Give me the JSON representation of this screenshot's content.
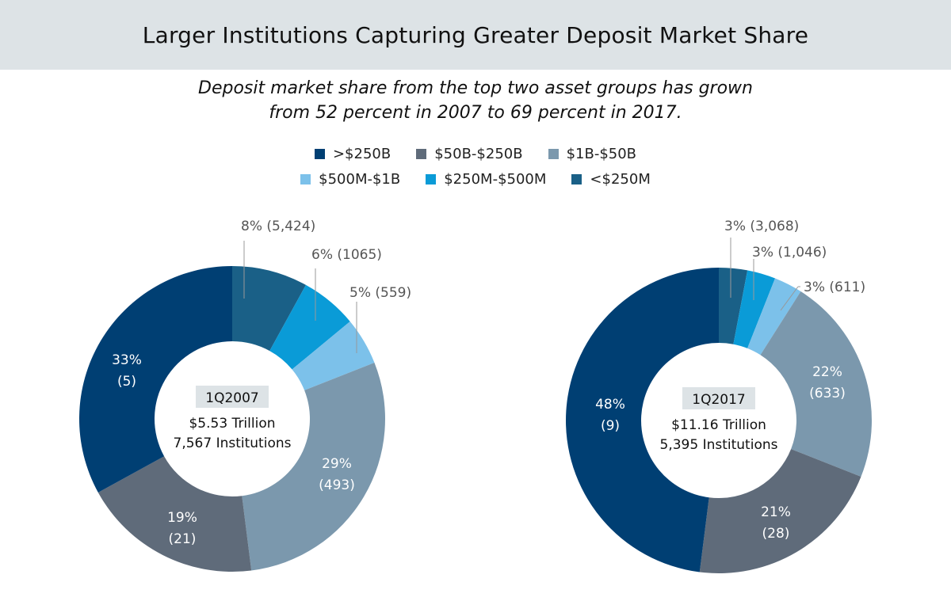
{
  "header": {
    "title": "Larger Institutions Capturing Greater Deposit Market Share",
    "subtitle_line1": "Deposit market share from the top two asset groups has grown",
    "subtitle_line2": "from 52 percent in 2007 to 69 percent in 2017."
  },
  "legend": {
    "row1": [
      {
        "label": ">$250B",
        "color": "#003f73"
      },
      {
        "label": "$50B-$250B",
        "color": "#5f6b7a"
      },
      {
        "label": "$1B-$50B",
        "color": "#7b98ad"
      }
    ],
    "row2": [
      {
        "label": "$500M-$1B",
        "color": "#7cc1ea"
      },
      {
        "label": "$250M-$500M",
        "color": "#0a9bd7"
      },
      {
        "label": "<$250M",
        "color": "#1a6087"
      }
    ]
  },
  "chart_data": [
    {
      "type": "pie",
      "center_label": "1Q2007",
      "center_line1": "$5.53 Trillion",
      "center_line2": "7,567 Institutions",
      "slices": [
        {
          "group": "<$250M",
          "percent": 8,
          "count": "5,424",
          "label": "8% (5,424)",
          "color": "#1a6087"
        },
        {
          "group": "$250M-$500M",
          "percent": 6,
          "count": "1065",
          "label": "6% (1065)",
          "color": "#0a9bd7"
        },
        {
          "group": "$500M-$1B",
          "percent": 5,
          "count": "559",
          "label": "5% (559)",
          "color": "#7cc1ea"
        },
        {
          "group": "$1B-$50B",
          "percent": 29,
          "count": "493",
          "label_pct": "29%",
          "label_cnt": "(493)",
          "color": "#7b98ad"
        },
        {
          "group": "$50B-$250B",
          "percent": 19,
          "count": "21",
          "label_pct": "19%",
          "label_cnt": "(21)",
          "color": "#5f6b7a"
        },
        {
          "group": ">$250B",
          "percent": 33,
          "count": "5",
          "label_pct": "33%",
          "label_cnt": "(5)",
          "color": "#003f73"
        }
      ]
    },
    {
      "type": "pie",
      "center_label": "1Q2017",
      "center_line1": "$11.16 Trillion",
      "center_line2": "5,395 Institutions",
      "slices": [
        {
          "group": "<$250M",
          "percent": 3,
          "count": "3,068",
          "label": "3% (3,068)",
          "color": "#1a6087"
        },
        {
          "group": "$250M-$500M",
          "percent": 3,
          "count": "1,046",
          "label": "3% (1,046)",
          "color": "#0a9bd7"
        },
        {
          "group": "$500M-$1B",
          "percent": 3,
          "count": "611",
          "label": "3% (611)",
          "color": "#7cc1ea"
        },
        {
          "group": "$1B-$50B",
          "percent": 22,
          "count": "633",
          "label_pct": "22%",
          "label_cnt": "(633)",
          "color": "#7b98ad"
        },
        {
          "group": "$50B-$250B",
          "percent": 21,
          "count": "28",
          "label_pct": "21%",
          "label_cnt": "(28)",
          "color": "#5f6b7a"
        },
        {
          "group": ">$250B",
          "percent": 48,
          "count": "9",
          "label_pct": "48%",
          "label_cnt": "(9)",
          "color": "#003f73"
        }
      ]
    }
  ]
}
